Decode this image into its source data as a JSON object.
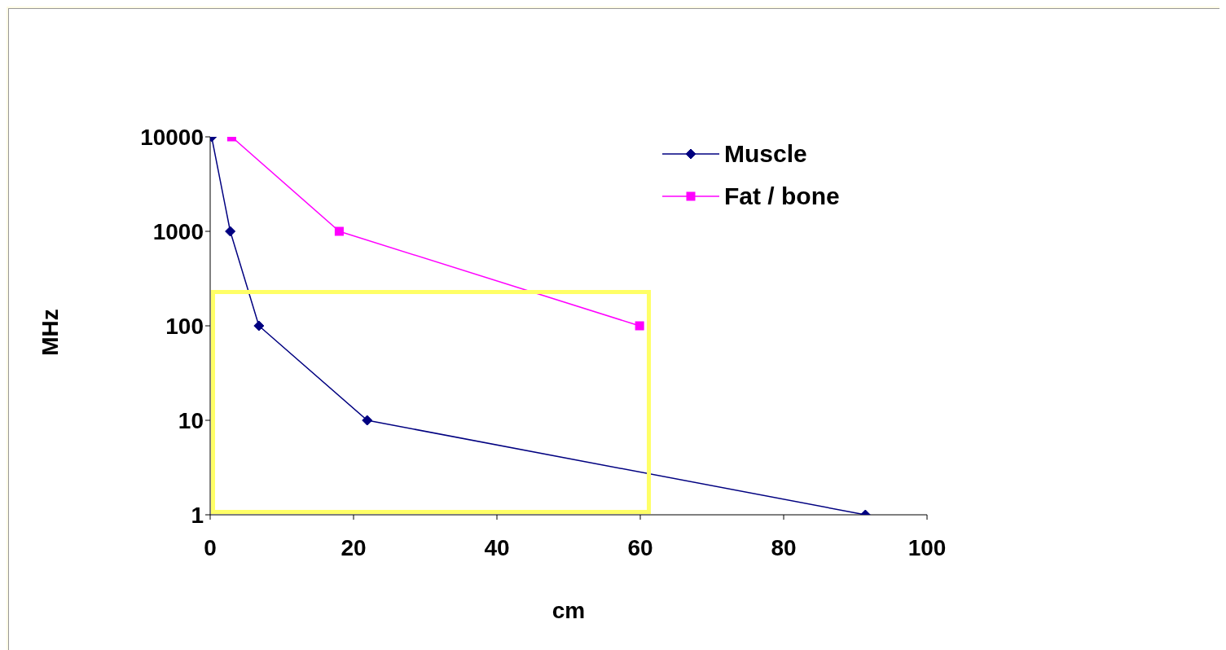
{
  "chart_data": {
    "type": "line",
    "xlabel": "cm",
    "ylabel": "MHz",
    "log": "y",
    "xlim": [
      0,
      100
    ],
    "xticks": [
      0,
      20,
      40,
      60,
      80,
      100
    ],
    "ylim": [
      1,
      10000
    ],
    "yticks": [
      1,
      10,
      100,
      1000,
      10000
    ],
    "grid": false,
    "legend": "top right",
    "series": [
      {
        "name": "Muscle",
        "color": "#000080",
        "marker": "diamond",
        "x": [
          0.2,
          2.8,
          6.8,
          21.9,
          91.4
        ],
        "values": [
          10000,
          1000,
          100,
          10,
          1
        ]
      },
      {
        "name": "Fat / bone",
        "color": "#ff00ff",
        "marker": "square",
        "x": [
          3,
          18,
          59.9
        ],
        "values": [
          10000,
          1000,
          100
        ]
      }
    ]
  }
}
